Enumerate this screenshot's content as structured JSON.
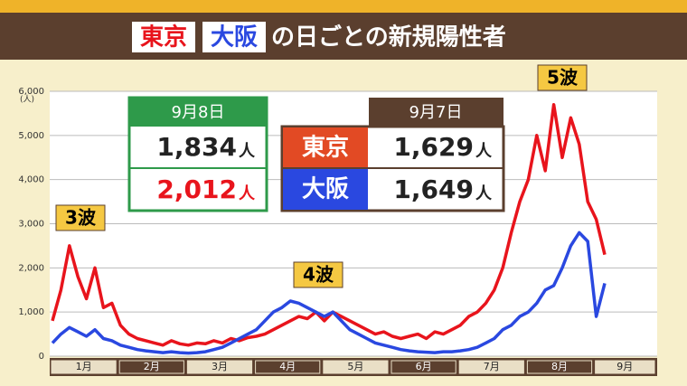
{
  "chart_data": {
    "type": "line",
    "title": "の日ごとの新規陽性者",
    "y_unit": "(人)",
    "categories": [
      "1月",
      null,
      null,
      null,
      null,
      null,
      null,
      null,
      "2月",
      null,
      null,
      null,
      null,
      null,
      null,
      null,
      "3月",
      null,
      null,
      null,
      null,
      null,
      null,
      null,
      "4月",
      null,
      null,
      null,
      null,
      null,
      null,
      null,
      "5月",
      null,
      null,
      null,
      null,
      null,
      null,
      null,
      "6月",
      null,
      null,
      null,
      null,
      null,
      null,
      null,
      "7月",
      null,
      null,
      null,
      null,
      null,
      null,
      null,
      "8月",
      null,
      null,
      null,
      null,
      null,
      null,
      null,
      "9月",
      null
    ],
    "series": [
      {
        "name": "東京",
        "color": "#e8141c",
        "values": [
          800,
          1500,
          2500,
          1800,
          1300,
          2000,
          1100,
          1200,
          700,
          500,
          400,
          350,
          300,
          250,
          350,
          280,
          250,
          300,
          280,
          350,
          300,
          400,
          350,
          420,
          450,
          500,
          600,
          700,
          800,
          900,
          850,
          1000,
          800,
          1000,
          900,
          800,
          700,
          600,
          500,
          550,
          450,
          400,
          450,
          500,
          400,
          550,
          500,
          600,
          700,
          900,
          1000,
          1200,
          1500,
          2000,
          2800,
          3500,
          4000,
          5000,
          4200,
          5700,
          4500,
          5400,
          4800,
          3500,
          3100,
          2300
        ]
      },
      {
        "name": "大阪",
        "color": "#2a48e0",
        "values": [
          300,
          500,
          650,
          550,
          450,
          600,
          400,
          350,
          250,
          200,
          150,
          120,
          100,
          80,
          100,
          80,
          70,
          80,
          100,
          150,
          200,
          300,
          400,
          500,
          600,
          800,
          1000,
          1100,
          1250,
          1200,
          1100,
          1000,
          900,
          1000,
          800,
          600,
          500,
          400,
          300,
          250,
          200,
          150,
          120,
          100,
          90,
          80,
          100,
          100,
          120,
          150,
          200,
          300,
          400,
          600,
          700,
          900,
          1000,
          1200,
          1500,
          1600,
          2000,
          2500,
          2800,
          2600,
          900,
          1650
        ]
      }
    ],
    "ylim": [
      0,
      6000
    ],
    "yticks": [
      0,
      {
        "value": 1000,
        "label": "1,000"
      },
      {
        "value": 2000,
        "label": "2,000"
      },
      {
        "value": 3000,
        "label": "3,000"
      },
      {
        "value": 4000,
        "label": "4,000"
      },
      {
        "value": 5000,
        "label": "5,000"
      },
      {
        "value": 6000,
        "label": "6,000"
      }
    ],
    "grid": true,
    "annotations": [
      "3波",
      "4波",
      "5波"
    ],
    "table_today": {
      "date": "9月8日",
      "rows": [
        {
          "value": "1,834",
          "unit": "人"
        },
        {
          "value": "2,012",
          "unit": "人"
        }
      ]
    },
    "table_prev": {
      "date": "9月7日",
      "rows": [
        {
          "value": "1,629",
          "unit": "人"
        },
        {
          "value": "1,649",
          "unit": "人"
        }
      ]
    }
  }
}
